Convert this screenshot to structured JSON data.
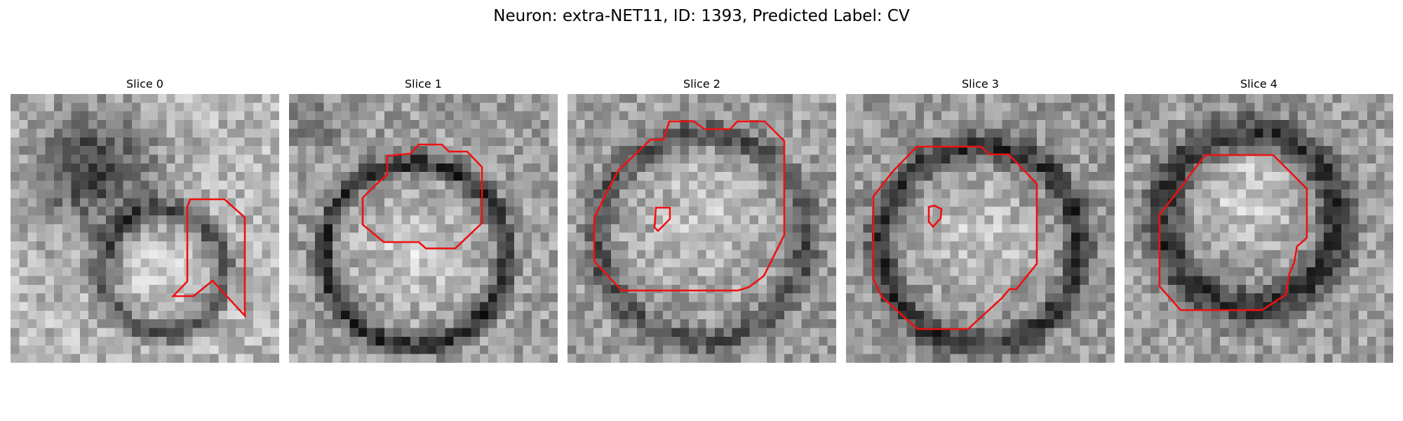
{
  "figure": {
    "title": "Neuron: extra-NET11, ID: 1393, Predicted Label: CV",
    "contour_color": "#ee1111"
  },
  "slices": [
    {
      "title": "Slice 0"
    },
    {
      "title": "Slice 1"
    },
    {
      "title": "Slice 2"
    },
    {
      "title": "Slice 3"
    },
    {
      "title": "Slice 4"
    }
  ]
}
